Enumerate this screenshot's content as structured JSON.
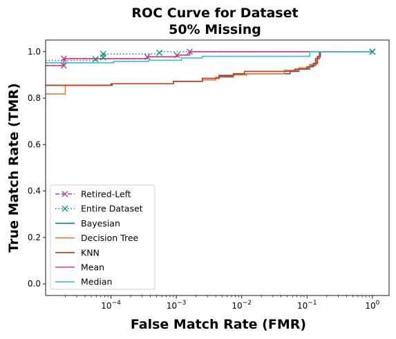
{
  "chart_data": {
    "type": "line",
    "title": "ROC Curve for Dataset",
    "subtitle": "50% Missing",
    "xlabel": "False Match Rate (FMR)",
    "ylabel": "True Match Rate (TMR)",
    "xscale": "log",
    "xlim": [
      1e-05,
      1.8
    ],
    "ylim": [
      -0.05,
      1.05
    ],
    "x_ticks": [
      {
        "value": 0.0001,
        "base": "10",
        "exp": "−4"
      },
      {
        "value": 0.001,
        "base": "10",
        "exp": "−3"
      },
      {
        "value": 0.01,
        "base": "10",
        "exp": "−2"
      },
      {
        "value": 0.1,
        "base": "10",
        "exp": "−1"
      },
      {
        "value": 1,
        "base": "10",
        "exp": "0"
      }
    ],
    "y_ticks": [
      "0.0",
      "0.2",
      "0.4",
      "0.6",
      "0.8",
      "1.0"
    ],
    "y_tick_values": [
      0.0,
      0.2,
      0.4,
      0.6,
      0.8,
      1.0
    ],
    "grid": false,
    "legend_position": "lower-left",
    "series": [
      {
        "name": "Retired-Left",
        "color": "#AA4499",
        "dash": "dashed",
        "marker": "x",
        "points": [
          [
            1e-05,
            0.94
          ],
          [
            1.9e-05,
            0.94
          ],
          [
            1.9e-05,
            0.97
          ],
          [
            0.00036,
            0.97
          ],
          [
            0.00036,
            0.978
          ],
          [
            0.00102,
            0.978
          ],
          [
            0.00102,
            0.985
          ],
          [
            0.0016,
            0.985
          ],
          [
            0.0016,
            1.0
          ],
          [
            1.0,
            1.0
          ]
        ],
        "markers": [
          [
            1.9e-05,
            0.94
          ],
          [
            1.9e-05,
            0.97
          ],
          [
            0.00036,
            0.978
          ],
          [
            0.00102,
            0.985
          ],
          [
            0.0016,
            1.0
          ],
          [
            1.0,
            1.0
          ]
        ]
      },
      {
        "name": "Entire Dataset",
        "color": "#009988",
        "dash": "dotted",
        "marker": "x",
        "points": [
          [
            1e-05,
            0.962
          ],
          [
            5.8e-05,
            0.962
          ],
          [
            5.8e-05,
            0.968
          ],
          [
            7.6e-05,
            0.968
          ],
          [
            7.6e-05,
            0.99
          ],
          [
            0.00055,
            0.99
          ],
          [
            0.00055,
            1.0
          ],
          [
            1.0,
            1.0
          ]
        ],
        "markers": [
          [
            5.8e-05,
            0.968
          ],
          [
            7.6e-05,
            0.975
          ],
          [
            7.6e-05,
            0.99
          ],
          [
            0.00055,
            0.995
          ],
          [
            1.0,
            1.0
          ]
        ]
      },
      {
        "name": "Bayesian",
        "color": "#0077BB",
        "dash": "solid",
        "points": [
          [
            1e-05,
            0.855
          ],
          [
            0.000105,
            0.855
          ],
          [
            0.000105,
            0.862
          ],
          [
            0.0009,
            0.862
          ],
          [
            0.0009,
            0.872
          ],
          [
            0.0025,
            0.872
          ],
          [
            0.0025,
            0.885
          ],
          [
            0.0045,
            0.885
          ],
          [
            0.0045,
            0.895
          ],
          [
            0.0075,
            0.895
          ],
          [
            0.0075,
            0.903
          ],
          [
            0.012,
            0.903
          ],
          [
            0.012,
            0.905
          ],
          [
            0.055,
            0.905
          ],
          [
            0.055,
            0.915
          ],
          [
            0.075,
            0.915
          ],
          [
            0.075,
            0.925
          ],
          [
            0.11,
            0.925
          ],
          [
            0.11,
            0.94
          ],
          [
            0.135,
            0.94
          ],
          [
            0.135,
            0.97
          ],
          [
            0.155,
            0.97
          ],
          [
            0.155,
            1.0
          ],
          [
            1.0,
            1.0
          ]
        ]
      },
      {
        "name": "Decision Tree",
        "color": "#EE7733",
        "dash": "solid",
        "points": [
          [
            1e-05,
            0.818
          ],
          [
            2e-05,
            0.818
          ],
          [
            2e-05,
            0.855
          ],
          [
            0.0001,
            0.855
          ],
          [
            0.0001,
            0.862
          ],
          [
            0.0009,
            0.862
          ],
          [
            0.0009,
            0.872
          ],
          [
            0.0025,
            0.872
          ],
          [
            0.0025,
            0.878
          ],
          [
            0.004,
            0.878
          ],
          [
            0.004,
            0.89
          ],
          [
            0.0075,
            0.89
          ],
          [
            0.0075,
            0.9
          ],
          [
            0.012,
            0.9
          ],
          [
            0.012,
            0.905
          ],
          [
            0.045,
            0.905
          ],
          [
            0.045,
            0.92
          ],
          [
            0.075,
            0.92
          ],
          [
            0.075,
            0.93
          ],
          [
            0.11,
            0.93
          ],
          [
            0.11,
            0.945
          ],
          [
            0.14,
            0.945
          ],
          [
            0.14,
            0.975
          ],
          [
            0.16,
            0.975
          ],
          [
            0.16,
            1.0
          ],
          [
            1.0,
            1.0
          ]
        ]
      },
      {
        "name": "KNN",
        "color": "#CC3311",
        "dash": "solid",
        "points": [
          [
            1e-05,
            0.855
          ],
          [
            0.0001,
            0.855
          ],
          [
            0.0001,
            0.862
          ],
          [
            0.0009,
            0.862
          ],
          [
            0.0009,
            0.872
          ],
          [
            0.0025,
            0.872
          ],
          [
            0.0025,
            0.885
          ],
          [
            0.0045,
            0.885
          ],
          [
            0.0045,
            0.898
          ],
          [
            0.0075,
            0.898
          ],
          [
            0.0075,
            0.905
          ],
          [
            0.011,
            0.905
          ],
          [
            0.011,
            0.915
          ],
          [
            0.065,
            0.915
          ],
          [
            0.065,
            0.925
          ],
          [
            0.1,
            0.925
          ],
          [
            0.1,
            0.935
          ],
          [
            0.125,
            0.935
          ],
          [
            0.125,
            0.95
          ],
          [
            0.145,
            0.95
          ],
          [
            0.145,
            0.98
          ],
          [
            0.16,
            0.98
          ],
          [
            0.16,
            1.0
          ],
          [
            1.0,
            1.0
          ]
        ]
      },
      {
        "name": "Mean",
        "color": "#EE3377",
        "dash": "solid",
        "points": [
          [
            1e-05,
            0.94
          ],
          [
            1.9e-05,
            0.94
          ],
          [
            1.9e-05,
            0.97
          ],
          [
            0.00036,
            0.97
          ],
          [
            0.00036,
            0.978
          ],
          [
            0.00102,
            0.978
          ],
          [
            0.00102,
            0.985
          ],
          [
            0.0016,
            0.985
          ],
          [
            0.0016,
            1.0
          ],
          [
            1.0,
            1.0
          ]
        ]
      },
      {
        "name": "Median",
        "color": "#33BBEE",
        "dash": "solid",
        "points": [
          [
            1e-05,
            0.952
          ],
          [
            0.00011,
            0.952
          ],
          [
            0.00011,
            0.958
          ],
          [
            0.00038,
            0.958
          ],
          [
            0.00038,
            0.963
          ],
          [
            0.0012,
            0.963
          ],
          [
            0.0012,
            0.973
          ],
          [
            0.0025,
            0.973
          ],
          [
            0.0025,
            0.98
          ],
          [
            0.11,
            0.98
          ],
          [
            0.11,
            1.0
          ],
          [
            1.0,
            1.0
          ]
        ]
      }
    ]
  }
}
